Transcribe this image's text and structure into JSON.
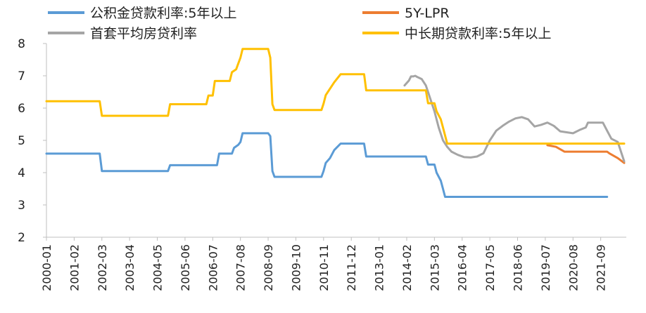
{
  "chart_data": {
    "type": "line",
    "ylim": [
      2,
      8
    ],
    "yticks": [
      2,
      3,
      4,
      5,
      6,
      7,
      8
    ],
    "x_categories": [
      "2000-01",
      "2001-02",
      "2002-03",
      "2003-04",
      "2004-05",
      "2005-06",
      "2006-07",
      "2007-08",
      "2008-09",
      "2009-10",
      "2010-11",
      "2011-12",
      "2013-01",
      "2014-02",
      "2015-03",
      "2016-04",
      "2017-05",
      "2018-06",
      "2019-07",
      "2020-08",
      "2021-09"
    ],
    "legend_position": "top",
    "series": [
      {
        "name": "公积金贷款利率:5年以上",
        "color": "#5B9BD5",
        "points": [
          [
            "2000-01",
            4.59
          ],
          [
            "2002-02",
            4.59
          ],
          [
            "2002-03",
            4.05
          ],
          [
            "2004-10",
            4.05
          ],
          [
            "2004-11",
            4.23
          ],
          [
            "2006-09",
            4.23
          ],
          [
            "2006-10",
            4.59
          ],
          [
            "2007-04",
            4.59
          ],
          [
            "2007-05",
            4.77
          ],
          [
            "2007-07",
            4.86
          ],
          [
            "2007-08",
            4.95
          ],
          [
            "2007-09",
            5.22
          ],
          [
            "2008-09",
            5.22
          ],
          [
            "2008-10",
            5.13
          ],
          [
            "2008-11",
            4.05
          ],
          [
            "2008-12",
            3.87
          ],
          [
            "2010-10",
            3.87
          ],
          [
            "2010-11",
            4.05
          ],
          [
            "2010-12",
            4.3
          ],
          [
            "2011-02",
            4.45
          ],
          [
            "2011-04",
            4.7
          ],
          [
            "2011-07",
            4.9
          ],
          [
            "2012-06",
            4.9
          ],
          [
            "2012-07",
            4.5
          ],
          [
            "2014-11",
            4.5
          ],
          [
            "2014-12",
            4.25
          ],
          [
            "2015-03",
            4.25
          ],
          [
            "2015-04",
            4.0
          ],
          [
            "2015-06",
            3.75
          ],
          [
            "2015-07",
            3.5
          ],
          [
            "2015-08",
            3.25
          ],
          [
            "2021-12",
            3.25
          ]
        ]
      },
      {
        "name": "5Y-LPR",
        "color": "#ED7D31",
        "points": [
          [
            "2019-08",
            4.85
          ],
          [
            "2019-12",
            4.8
          ],
          [
            "2020-04",
            4.65
          ],
          [
            "2021-12",
            4.65
          ],
          [
            "2022-01",
            4.6
          ],
          [
            "2022-05",
            4.45
          ],
          [
            "2022-08",
            4.3
          ]
        ]
      },
      {
        "name": "首套平均房贷利率",
        "color": "#A5A5A5",
        "points": [
          [
            "2014-01",
            6.7
          ],
          [
            "2014-03",
            6.85
          ],
          [
            "2014-04",
            6.98
          ],
          [
            "2014-05",
            6.98
          ],
          [
            "2014-06",
            7.0
          ],
          [
            "2014-07",
            6.96
          ],
          [
            "2014-09",
            6.9
          ],
          [
            "2014-11",
            6.7
          ],
          [
            "2015-01",
            6.3
          ],
          [
            "2015-03",
            5.9
          ],
          [
            "2015-05",
            5.4
          ],
          [
            "2015-07",
            5.0
          ],
          [
            "2015-09",
            4.8
          ],
          [
            "2015-11",
            4.65
          ],
          [
            "2016-02",
            4.55
          ],
          [
            "2016-05",
            4.48
          ],
          [
            "2016-08",
            4.47
          ],
          [
            "2016-11",
            4.5
          ],
          [
            "2017-02",
            4.6
          ],
          [
            "2017-05",
            5.0
          ],
          [
            "2017-08",
            5.3
          ],
          [
            "2017-11",
            5.45
          ],
          [
            "2018-02",
            5.58
          ],
          [
            "2018-05",
            5.68
          ],
          [
            "2018-08",
            5.72
          ],
          [
            "2018-11",
            5.65
          ],
          [
            "2019-02",
            5.43
          ],
          [
            "2019-05",
            5.48
          ],
          [
            "2019-08",
            5.55
          ],
          [
            "2019-11",
            5.45
          ],
          [
            "2020-02",
            5.28
          ],
          [
            "2020-05",
            5.25
          ],
          [
            "2020-08",
            5.22
          ],
          [
            "2020-11",
            5.32
          ],
          [
            "2021-02",
            5.4
          ],
          [
            "2021-03",
            5.55
          ],
          [
            "2021-10",
            5.55
          ],
          [
            "2021-12",
            5.3
          ],
          [
            "2022-02",
            5.05
          ],
          [
            "2022-05",
            4.95
          ],
          [
            "2022-08",
            4.35
          ]
        ]
      },
      {
        "name": "中长期贷款利率:5年以上",
        "color": "#FFC000",
        "points": [
          [
            "2000-01",
            6.21
          ],
          [
            "2002-02",
            6.21
          ],
          [
            "2002-03",
            5.76
          ],
          [
            "2004-10",
            5.76
          ],
          [
            "2004-11",
            6.12
          ],
          [
            "2006-04",
            6.12
          ],
          [
            "2006-05",
            6.39
          ],
          [
            "2006-07",
            6.39
          ],
          [
            "2006-08",
            6.84
          ],
          [
            "2007-03",
            6.84
          ],
          [
            "2007-04",
            7.11
          ],
          [
            "2007-06",
            7.2
          ],
          [
            "2007-07",
            7.38
          ],
          [
            "2007-08",
            7.56
          ],
          [
            "2007-09",
            7.83
          ],
          [
            "2008-09",
            7.83
          ],
          [
            "2008-10",
            7.56
          ],
          [
            "2008-11",
            6.12
          ],
          [
            "2008-12",
            5.94
          ],
          [
            "2010-10",
            5.94
          ],
          [
            "2010-11",
            6.14
          ],
          [
            "2010-12",
            6.4
          ],
          [
            "2011-02",
            6.6
          ],
          [
            "2011-04",
            6.8
          ],
          [
            "2011-07",
            7.05
          ],
          [
            "2012-06",
            7.05
          ],
          [
            "2012-07",
            6.55
          ],
          [
            "2014-11",
            6.55
          ],
          [
            "2014-12",
            6.15
          ],
          [
            "2015-03",
            6.15
          ],
          [
            "2015-04",
            5.9
          ],
          [
            "2015-06",
            5.65
          ],
          [
            "2015-07",
            5.4
          ],
          [
            "2015-08",
            5.15
          ],
          [
            "2015-09",
            4.9
          ],
          [
            "2022-08",
            4.9
          ]
        ]
      }
    ]
  }
}
